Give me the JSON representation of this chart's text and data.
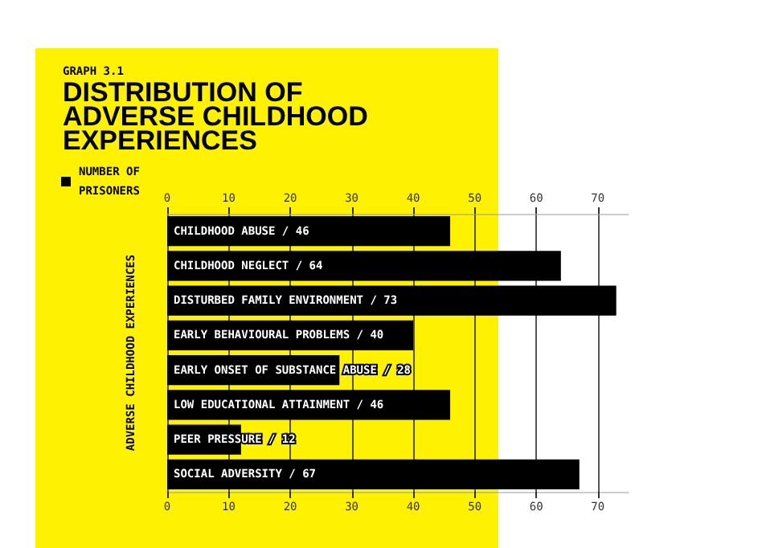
{
  "chart_data": {
    "type": "bar",
    "orientation": "horizontal",
    "subtitle": "GRAPH 3.1",
    "title": "DISTRIBUTION OF ADVERSE CHILDHOOD EXPERIENCES",
    "ylabel": "ADVERSE CHILDHOOD EXPERIENCES",
    "categories": [
      null,
      null,
      null,
      null,
      null,
      null,
      null,
      null
    ],
    "series": [
      {
        "name": "NUMBER OF PRISONERS",
        "color": "#000000",
        "values": [
          46,
          64,
          73,
          40,
          28,
          46,
          12,
          67
        ],
        "value_labels": [
          "CHILDHOOD ABUSE / 46",
          "CHILDHOOD NEGLECT / 64",
          "DISTURBED FAMILY ENVIRONMENT / 73",
          "EARLY BEHAVIOURAL PROBLEMS / 40",
          "EARLY ONSET OF SUBSTANCE ABUSE / 28",
          "LOW EDUCATIONAL ATTAINMENT / 46",
          "PEER PRESSURE / 12",
          "SOCIAL ADVERSITY / 67"
        ]
      }
    ],
    "xlim": [
      0,
      75
    ],
    "xticks": [
      0,
      10,
      20,
      30,
      40,
      50,
      60,
      70
    ],
    "x2lim": [
      0,
      75
    ],
    "x2ticks": [
      0,
      10,
      20,
      30,
      40,
      50,
      60,
      70
    ],
    "grid": "x",
    "legend": "top left"
  }
}
